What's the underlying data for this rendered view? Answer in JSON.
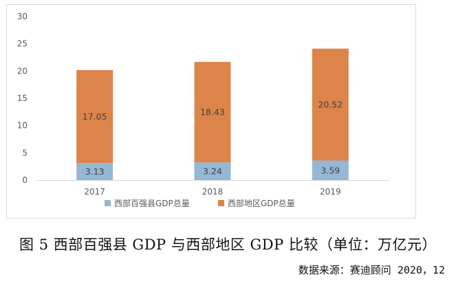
{
  "chart_data": {
    "type": "bar",
    "stacked": true,
    "categories": [
      "2017",
      "2018",
      "2019"
    ],
    "series": [
      {
        "name": "西部百强县GDP总量",
        "values": [
          3.13,
          3.24,
          3.59
        ],
        "color": "#94b8d6"
      },
      {
        "name": "西部地区GDP总量",
        "values": [
          17.05,
          18.43,
          20.52
        ],
        "color": "#dd844a"
      }
    ],
    "ylim": [
      0,
      30
    ],
    "y_ticks": [
      "0",
      "5",
      "10",
      "15",
      "20",
      "25",
      "30"
    ],
    "grid": false,
    "legend_position": "bottom"
  },
  "caption": "图 5  西部百强县 GDP 与西部地区 GDP 比较（单位：万亿元）",
  "source": "数据来源：赛迪顾问 2020，12"
}
